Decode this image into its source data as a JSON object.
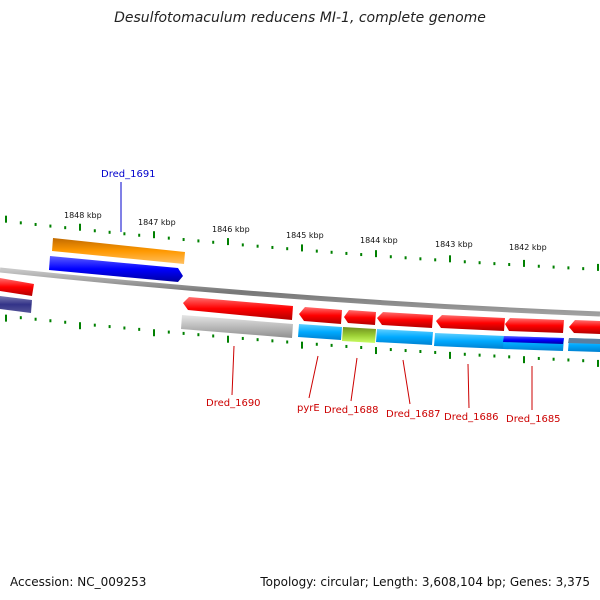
{
  "title": "Desulfotomaculum reducens MI-1, complete genome",
  "ticks": [
    "1848 kbp",
    "1847 kbp",
    "1846 kbp",
    "1845 kbp",
    "1844 kbp",
    "1843 kbp",
    "1842 kbp"
  ],
  "genes": [
    {
      "name": "Dred_1691",
      "color": "#0000cc"
    },
    {
      "name": "Dred_1690",
      "color": "#cc0000"
    },
    {
      "name": "pyrE",
      "color": "#cc0000"
    },
    {
      "name": "Dred_1688",
      "color": "#cc0000"
    },
    {
      "name": "Dred_1687",
      "color": "#cc0000"
    },
    {
      "name": "Dred_1686",
      "color": "#cc0000"
    },
    {
      "name": "Dred_1685",
      "color": "#cc0000"
    }
  ],
  "footer": {
    "accession": "Accession: NC_009253",
    "summary": "Topology: circular; Length: 3,608,104 bp; Genes: 3,375"
  },
  "colors": {
    "forward_strand": "#ff0000",
    "reverse_strand": "#0000ff",
    "cog_orange": "#ff9900",
    "cog_cyan": "#00aaff",
    "cog_gray": "#bbbbbb",
    "cog_olive": "#99cc33",
    "tick": "#008000"
  }
}
